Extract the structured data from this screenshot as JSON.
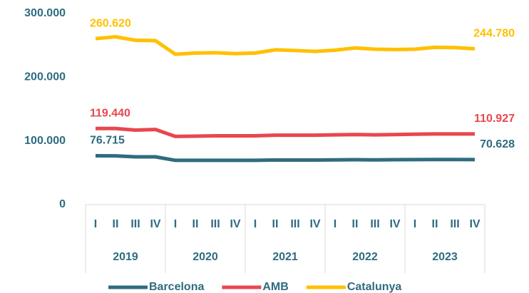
{
  "chart_data": {
    "type": "line",
    "categories": [
      "I",
      "II",
      "III",
      "IV",
      "I",
      "II",
      "III",
      "IV",
      "I",
      "II",
      "III",
      "IV",
      "I",
      "II",
      "III",
      "IV",
      "I",
      "II",
      "III",
      "IV"
    ],
    "year_groups": [
      "2019",
      "2020",
      "2021",
      "2022",
      "2023"
    ],
    "series": [
      {
        "name": "Barcelona",
        "color": "#2f6c80",
        "values": [
          76715,
          76500,
          75000,
          75000,
          69500,
          69500,
          69500,
          69500,
          69500,
          70000,
          70000,
          70000,
          70200,
          70500,
          70300,
          70500,
          70600,
          70800,
          70800,
          70628
        ],
        "value_labels": [
          "76.715",
          null,
          null,
          null,
          null,
          null,
          null,
          null,
          null,
          null,
          null,
          null,
          null,
          null,
          null,
          null,
          null,
          null,
          null,
          "70.628"
        ]
      },
      {
        "name": "AMB",
        "color": "#e8474f",
        "values": [
          119440,
          119500,
          117000,
          118000,
          107000,
          107500,
          108000,
          108000,
          108000,
          109000,
          109000,
          109000,
          109500,
          110000,
          109500,
          110000,
          110500,
          111000,
          111000,
          110927
        ],
        "value_labels": [
          "119.440",
          null,
          null,
          null,
          null,
          null,
          null,
          null,
          null,
          null,
          null,
          null,
          null,
          null,
          null,
          null,
          null,
          null,
          null,
          "110.927"
        ]
      },
      {
        "name": "Catalunya",
        "color": "#ffc000",
        "values": [
          260620,
          263500,
          258000,
          257500,
          236000,
          238000,
          238500,
          237000,
          238000,
          243000,
          242000,
          240500,
          242500,
          246000,
          244000,
          243500,
          244000,
          247000,
          246500,
          244780
        ],
        "value_labels": [
          "260.620",
          null,
          null,
          null,
          null,
          null,
          null,
          null,
          null,
          null,
          null,
          null,
          null,
          null,
          null,
          null,
          null,
          null,
          null,
          "244.780"
        ]
      }
    ],
    "ylim": [
      0,
      300000
    ],
    "yticks": [
      0,
      {
        "value": 100000,
        "label": "100.000"
      },
      {
        "value": 200000,
        "label": "200.000"
      },
      {
        "value": 300000,
        "label": "300.000"
      }
    ],
    "grid": false,
    "legend": "bottom"
  }
}
